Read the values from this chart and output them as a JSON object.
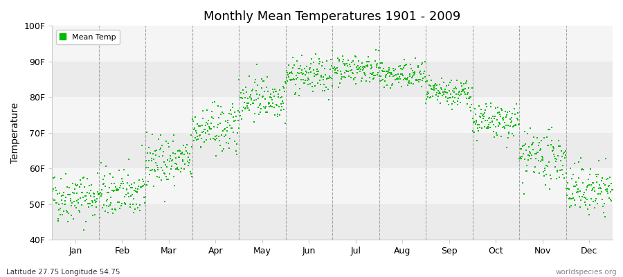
{
  "title": "Monthly Mean Temperatures 1901 - 2009",
  "ylabel": "Temperature",
  "yticks": [
    40,
    50,
    60,
    70,
    80,
    90,
    100
  ],
  "ytick_labels": [
    "40F",
    "50F",
    "60F",
    "70F",
    "80F",
    "90F",
    "100F"
  ],
  "month_labels": [
    "Jan",
    "Feb",
    "Mar",
    "Apr",
    "May",
    "Jun",
    "Jul",
    "Aug",
    "Sep",
    "Oct",
    "Nov",
    "Dec"
  ],
  "dot_color": "#00bb00",
  "dot_size": 4,
  "legend_label": "Mean Temp",
  "subtitle_left": "Latitude 27.75 Longitude 54.75",
  "subtitle_right": "worldspecies.org",
  "bg_color_light": "#f5f5f5",
  "bg_color_dark": "#ebebeb",
  "monthly_means": [
    52,
    53,
    62,
    71,
    80,
    86,
    88,
    86,
    81,
    73,
    63,
    54
  ],
  "monthly_stds": [
    3.5,
    3.5,
    3.5,
    3.5,
    3.0,
    2.5,
    2.0,
    2.0,
    2.0,
    2.5,
    3.5,
    3.5
  ],
  "n_years": 109,
  "start_year": 1901,
  "ylim": [
    40,
    100
  ],
  "xlim": [
    0,
    12
  ]
}
